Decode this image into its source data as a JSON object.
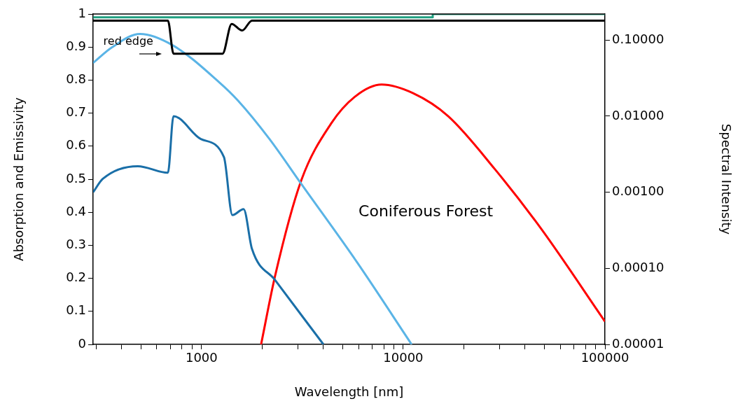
{
  "chart_data": {
    "type": "line",
    "xlabel": "Wavelength [nm]",
    "ylabel": "Spectral Intensity",
    "y2label": "Absorption and Emissivity",
    "log": "xy",
    "grid": false,
    "legend": false,
    "marker": "none",
    "line_style": "solid",
    "xlim": [
      290,
      100000
    ],
    "ylim": [
      1e-05,
      0.22
    ],
    "y2lim": [
      0,
      1
    ],
    "xticks": [
      {
        "value": 300,
        "label": null
      },
      {
        "value": 400,
        "label": null
      },
      {
        "value": 500,
        "label": null
      },
      {
        "value": 600,
        "label": null
      },
      {
        "value": 700,
        "label": null
      },
      {
        "value": 800,
        "label": null
      },
      {
        "value": 900,
        "label": null
      },
      1000,
      {
        "value": 2000,
        "label": null
      },
      {
        "value": 3000,
        "label": null
      },
      {
        "value": 4000,
        "label": null
      },
      {
        "value": 5000,
        "label": null
      },
      {
        "value": 6000,
        "label": null
      },
      {
        "value": 7000,
        "label": null
      },
      {
        "value": 8000,
        "label": null
      },
      {
        "value": 9000,
        "label": null
      },
      10000,
      {
        "value": 20000,
        "label": null
      },
      {
        "value": 30000,
        "label": null
      },
      {
        "value": 40000,
        "label": null
      },
      {
        "value": 50000,
        "label": null
      },
      {
        "value": 60000,
        "label": null
      },
      {
        "value": 70000,
        "label": null
      },
      {
        "value": 80000,
        "label": null
      },
      {
        "value": 90000,
        "label": null
      },
      100000
    ],
    "yticks": [
      {
        "value": 1e-05,
        "label": "0.00001"
      },
      {
        "value": 0.0001,
        "label": "0.00010"
      },
      {
        "value": 0.001,
        "label": "0.00100"
      },
      {
        "value": 0.01,
        "label": "0.01000"
      },
      {
        "value": 0.1,
        "label": "0.10000"
      }
    ],
    "y2ticks": [
      0,
      0.1,
      0.2,
      0.3,
      0.4,
      0.5,
      0.6,
      0.7,
      0.8,
      0.9,
      1
    ],
    "series": [
      {
        "color": "#20a080",
        "axis": "y2",
        "x": [
          290,
          14000,
          14000,
          100000
        ],
        "values": [
          0.99,
          0.99,
          1.0,
          1.0
        ]
      },
      {
        "color": "#000000",
        "axis": "y2",
        "x": [
          290,
          681,
          726,
          1271,
          1410,
          1590,
          1778,
          100000
        ],
        "values": [
          0.98,
          0.98,
          0.88,
          0.88,
          0.97,
          0.95,
          0.98,
          0.98
        ]
      },
      {
        "color": "#5ab4e6",
        "x": [
          290,
          359,
          495,
          721,
          1221,
          1516,
          2172,
          3112,
          5900,
          11000
        ],
        "values": [
          0.05,
          0.08,
          0.12,
          0.085,
          0.028,
          0.016,
          0.005,
          0.0013,
          0.00012,
          1e-05
        ]
      },
      {
        "color": "#1a6fa8",
        "x": [
          290,
          324,
          483,
          681,
          726,
          992,
          1291,
          1422,
          1616,
          1778,
          2316,
          4020
        ],
        "values": [
          0.001,
          0.0015,
          0.0022,
          0.0018,
          0.01,
          0.005,
          0.0029,
          0.0005,
          0.0006,
          0.00018,
          7e-05,
          1e-05
        ]
      },
      {
        "color": "#ff0000",
        "x": [
          1973,
          2316,
          3112,
          4390,
          5760,
          7810,
          11190,
          16680,
          28500,
          48300,
          100000
        ],
        "values": [
          1e-05,
          8e-05,
          0.0014,
          0.008,
          0.018,
          0.026,
          0.02,
          0.01,
          0.002,
          0.00033,
          2e-05
        ]
      }
    ],
    "annotations": [
      "red edge",
      "Coniferous Forest"
    ]
  }
}
